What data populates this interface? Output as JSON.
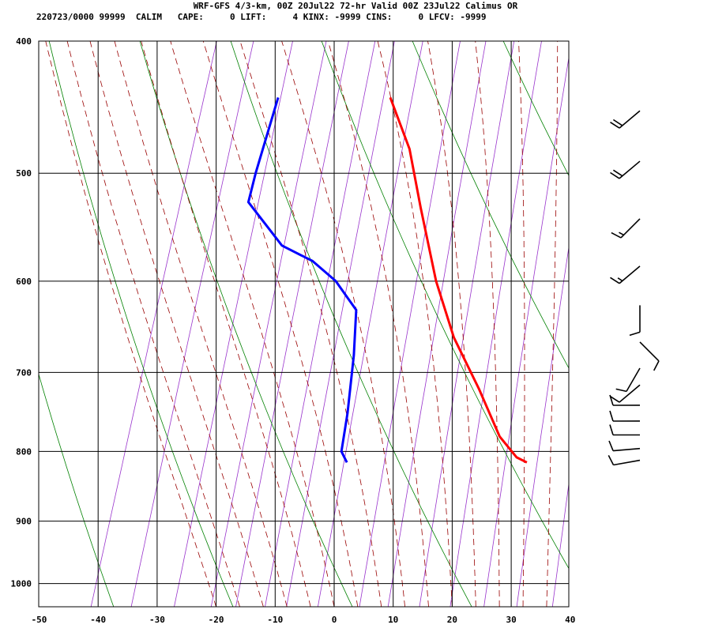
{
  "header": {
    "line1": "WRF-GFS 4/3-km, 00Z 20Jul22 72-hr Valid 00Z 23Jul22 Calimus OR",
    "line2": "220723/0000 99999  CALIM   CAPE:     0 LIFT:     4 KINX: -9999 CINS:     0 LFCV: -9999"
  },
  "chart_data": {
    "type": "line",
    "x_ticks": [
      -50,
      -40,
      -30,
      -20,
      -10,
      0,
      10,
      20,
      30,
      40
    ],
    "y_ticks": [
      400,
      500,
      600,
      700,
      800,
      900,
      1000
    ],
    "xlim": [
      -50,
      40
    ],
    "ylim": [
      1040,
      400
    ],
    "log_pressure": true,
    "skew": 30,
    "grid": true,
    "colors": {
      "temperature": "#ff0000",
      "dewpoint": "#0000ff",
      "isotherm": "#000000",
      "dry_adiabat": "#008000",
      "moist_adiabat": "#990000",
      "mixing_ratio": "#9933cc",
      "wind_barb": "#000000"
    },
    "series": [
      {
        "points": [
          {
            "p": 440,
            "t": -17.5
          },
          {
            "p": 480,
            "t": -11.5
          },
          {
            "p": 530,
            "t": -6.5
          },
          {
            "p": 600,
            "t": 0
          },
          {
            "p": 660,
            "t": 6
          },
          {
            "p": 720,
            "t": 13
          },
          {
            "p": 780,
            "t": 19
          },
          {
            "p": 808,
            "t": 23
          },
          {
            "p": 815,
            "t": 25
          }
        ]
      },
      {
        "points": [
          {
            "p": 440,
            "t": -36.5
          },
          {
            "p": 500,
            "t": -36.3
          },
          {
            "p": 525,
            "t": -36
          },
          {
            "p": 565,
            "t": -28
          },
          {
            "p": 580,
            "t": -22
          },
          {
            "p": 600,
            "t": -17
          },
          {
            "p": 630,
            "t": -12
          },
          {
            "p": 680,
            "t": -10
          },
          {
            "p": 750,
            "t": -8
          },
          {
            "p": 800,
            "t": -7
          },
          {
            "p": 815,
            "t": -5.5
          }
        ]
      }
    ],
    "wind_barbs": [
      {
        "p": 450,
        "dir": 230,
        "speed": 20
      },
      {
        "p": 490,
        "dir": 230,
        "speed": 20
      },
      {
        "p": 540,
        "dir": 225,
        "speed": 15
      },
      {
        "p": 585,
        "dir": 230,
        "speed": 15
      },
      {
        "p": 625,
        "dir": 180,
        "speed": 10
      },
      {
        "p": 665,
        "dir": 135,
        "speed": 10
      },
      {
        "p": 695,
        "dir": 210,
        "speed": 10
      },
      {
        "p": 715,
        "dir": 230,
        "speed": 10
      },
      {
        "p": 740,
        "dir": 270,
        "speed": 10
      },
      {
        "p": 760,
        "dir": 270,
        "speed": 10
      },
      {
        "p": 778,
        "dir": 270,
        "speed": 10
      },
      {
        "p": 796,
        "dir": 265,
        "speed": 10
      },
      {
        "p": 812,
        "dir": 260,
        "speed": 10
      }
    ]
  }
}
